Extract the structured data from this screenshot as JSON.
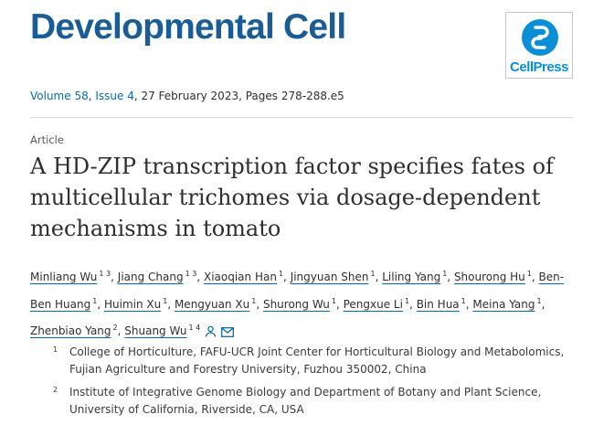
{
  "journal": {
    "title": "Developmental Cell",
    "publisher_logo_text": "CellPress"
  },
  "citation": {
    "volume": "Volume 58",
    "issue": "Issue 4",
    "date_pages": ", 27 February 2023, Pages 278-288.e5"
  },
  "article": {
    "type": "Article",
    "title": "A HD-ZIP transcription factor specifies fates of multicellular trichomes via dosage-dependent mechanisms in tomato"
  },
  "authors": [
    {
      "name": "Minliang Wu",
      "sup": "1 3"
    },
    {
      "name": "Jiang Chang",
      "sup": "1 3"
    },
    {
      "name": "Xiaoqian Han",
      "sup": "1"
    },
    {
      "name": "Jingyuan Shen",
      "sup": "1"
    },
    {
      "name": "Liling Yang",
      "sup": "1"
    },
    {
      "name": "Shourong Hu",
      "sup": "1"
    },
    {
      "name": "Ben-Ben Huang",
      "sup": "1"
    },
    {
      "name": "Huimin Xu",
      "sup": "1"
    },
    {
      "name": "Mengyuan Xu",
      "sup": "1"
    },
    {
      "name": "Shurong Wu",
      "sup": "1"
    },
    {
      "name": "Pengxue Li",
      "sup": "1"
    },
    {
      "name": "Bin Hua",
      "sup": "1"
    },
    {
      "name": "Meina Yang",
      "sup": "1"
    },
    {
      "name": "Zhenbiao Yang",
      "sup": "2"
    },
    {
      "name": "Shuang Wu",
      "sup": "1 4"
    }
  ],
  "author_icons": [
    "person-icon",
    "envelope-icon"
  ],
  "affiliations": [
    {
      "num": "1",
      "text": "College of Horticulture, FAFU-UCR Joint Center for Horticultural Biology and Metabolomics, Fujian Agriculture and Forestry University, Fuzhou 350002, China"
    },
    {
      "num": "2",
      "text": "Institute of Integrative Genome Biology and Department of Botany and Plant Science, University of California, Riverside, CA, USA"
    }
  ],
  "colors": {
    "journal_blue": "#1a5d96",
    "link_blue": "#0a6aa6",
    "cellpress_blue": "#0a8fd6"
  }
}
